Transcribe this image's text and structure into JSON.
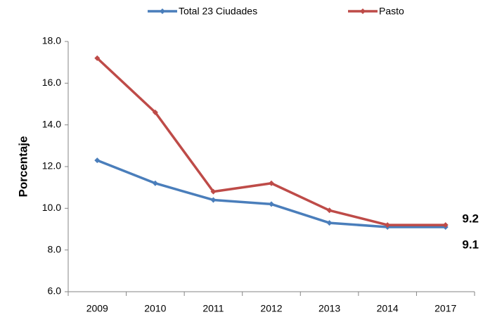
{
  "chart_data": {
    "type": "line",
    "ylabel": "Porcentaje",
    "categories": [
      "2009",
      "2010",
      "2011",
      "2012",
      "2013",
      "2014",
      "2017"
    ],
    "series": [
      {
        "name": "Total 23 Ciudades",
        "color": "#4a7ebb",
        "label_color": "#1f73c1",
        "values": [
          12.3,
          11.2,
          10.4,
          10.2,
          9.3,
          9.1,
          9.1
        ]
      },
      {
        "name": "Pasto",
        "color": "#be4b48",
        "label_color": "#e8221f",
        "values": [
          17.2,
          14.6,
          10.8,
          11.2,
          9.9,
          9.2,
          9.2
        ]
      }
    ],
    "ylim": [
      6,
      18
    ],
    "yticks": [
      {
        "value": 6,
        "label": "6.0"
      },
      {
        "value": 8,
        "label": "8.0"
      },
      {
        "value": 10,
        "label": "10.0"
      },
      {
        "value": 12,
        "label": "12.0"
      },
      {
        "value": 14,
        "label": "14.0"
      },
      {
        "value": 16,
        "label": "16.0"
      },
      {
        "value": 18,
        "label": "18.0"
      }
    ],
    "grid": false,
    "legend": "top"
  }
}
